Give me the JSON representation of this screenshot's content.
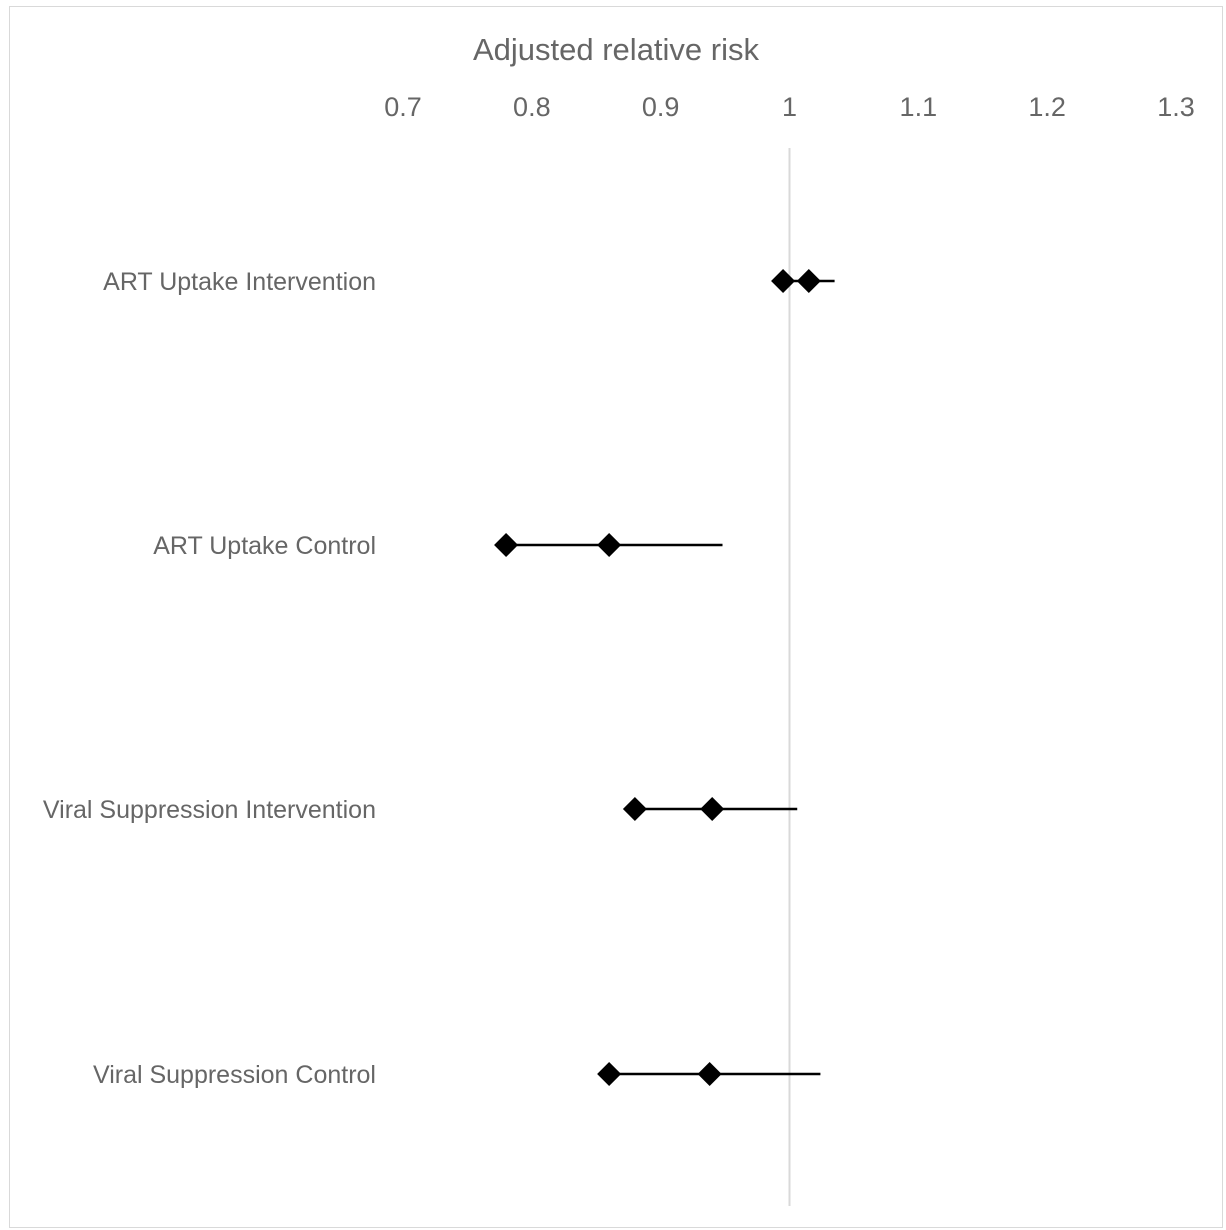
{
  "chart_data": {
    "type": "scatter",
    "title": "",
    "xlabel": "Adjusted relative risk",
    "ylabel": "",
    "xlim": [
      0.7,
      1.3
    ],
    "xticks": [
      "0.7",
      "0.8",
      "0.9",
      "1",
      "1.1",
      "1.2",
      "1.3"
    ],
    "xtick_values": [
      0.7,
      0.8,
      0.9,
      1.0,
      1.1,
      1.2,
      1.3
    ],
    "reference_line": 1.0,
    "categories": [
      "ART Uptake Intervention",
      "ART Uptake Control",
      "Viral Suppression Intervention",
      "Viral Suppression Control"
    ],
    "rows": [
      {
        "label": "ART Uptake Intervention",
        "markers": [
          0.995,
          1.015
        ],
        "whisker": [
          0.995,
          1.035
        ]
      },
      {
        "label": "ART Uptake Control",
        "markers": [
          0.78,
          0.86
        ],
        "whisker": [
          0.78,
          0.948
        ]
      },
      {
        "label": "Viral Suppression Intervention",
        "markers": [
          0.88,
          0.94
        ],
        "whisker": [
          0.88,
          1.006
        ]
      },
      {
        "label": "Viral Suppression Control",
        "markers": [
          0.86,
          0.938
        ],
        "whisker": [
          0.86,
          1.024
        ]
      }
    ],
    "grid": false,
    "marker_color": "#000000",
    "line_color": "#000000",
    "reference_line_color": "#d9d9d9"
  }
}
